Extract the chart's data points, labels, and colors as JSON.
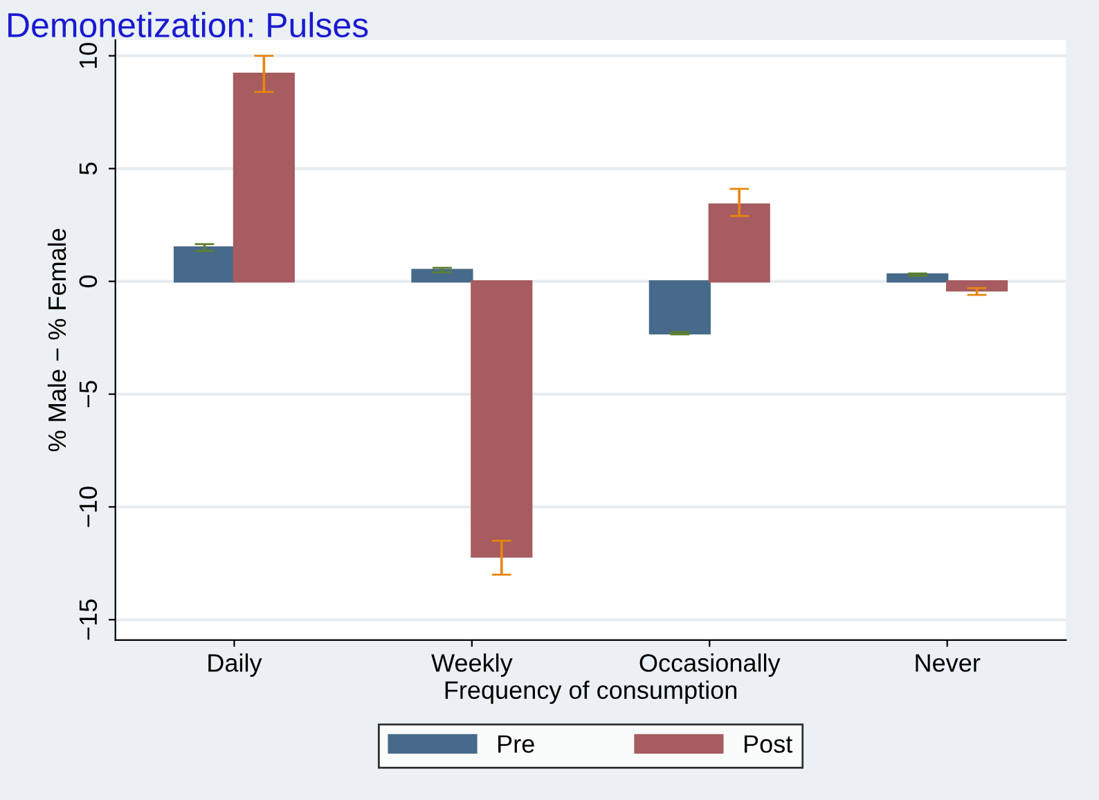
{
  "chart_data": {
    "type": "bar",
    "title": "Demonetization: Pulses",
    "xlabel": "Frequency of consumption",
    "ylabel": "% Male − % Female",
    "categories": [
      "Daily",
      "Weekly",
      "Occasionally",
      "Never"
    ],
    "series": [
      {
        "name": "Pre",
        "color": "#476a8a",
        "values": [
          1.5,
          0.5,
          -2.3,
          0.3
        ],
        "errors": [
          0.15,
          0.1,
          0.05,
          0.05
        ]
      },
      {
        "name": "Post",
        "color": "#a65c60",
        "values": [
          9.2,
          -12.2,
          3.4,
          -0.4
        ],
        "errors": [
          [
            8.4,
            10.0
          ],
          [
            -13.0,
            -11.5
          ],
          [
            2.9,
            4.1
          ],
          [
            -0.6,
            -0.3
          ]
        ]
      }
    ],
    "ylim": [
      -15.9,
      10.7
    ],
    "yticks": [
      {
        "value": -15,
        "label": "−15"
      },
      {
        "value": -10,
        "label": "−10"
      },
      {
        "value": -5,
        "label": "−5"
      },
      0,
      5,
      10
    ],
    "grid": "y",
    "legend": "bottom"
  }
}
